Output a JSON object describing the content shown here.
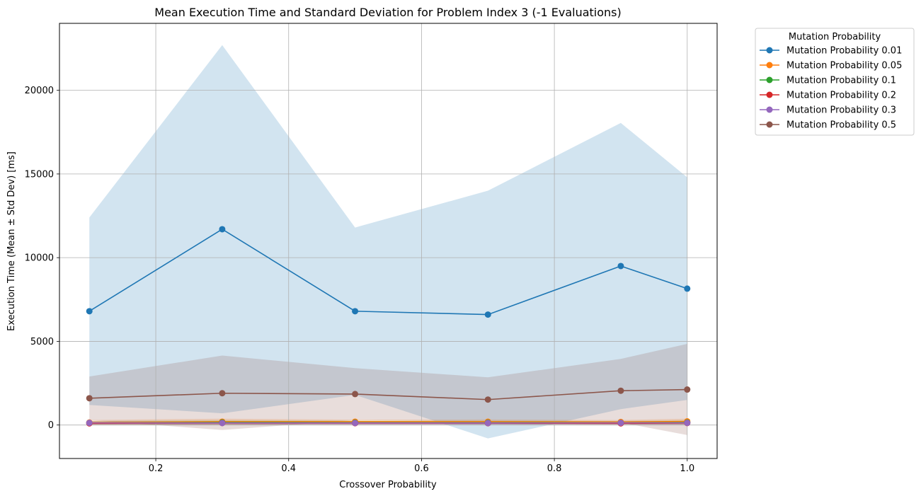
{
  "chart_data": {
    "type": "line",
    "title": "Mean Execution Time and Standard Deviation for Problem Index 3 (-1 Evaluations)",
    "xlabel": "Crossover Probability",
    "ylabel": "Execution Time (Mean ± Std Dev) [ms]",
    "xlim": [
      0.055,
      1.045
    ],
    "ylim": [
      -2000,
      24000
    ],
    "xticks": [
      0.2,
      0.4,
      0.6,
      0.8,
      1.0
    ],
    "xtick_labels": [
      "0.2",
      "0.4",
      "0.6",
      "0.8",
      "1.0"
    ],
    "yticks": [
      0,
      5000,
      10000,
      15000,
      20000
    ],
    "ytick_labels": [
      "0",
      "5000",
      "10000",
      "15000",
      "20000"
    ],
    "grid": true,
    "legend": {
      "title": "Mutation Probability",
      "placement": "outside-top-right"
    },
    "x": [
      0.1,
      0.3,
      0.5,
      0.7,
      0.9,
      1.0
    ],
    "series": [
      {
        "name": "Mutation Probability 0.01",
        "color": "#1f77b4",
        "values": [
          6800,
          11700,
          6800,
          6600,
          9500,
          8150
        ],
        "upper": [
          12400,
          22700,
          11800,
          14000,
          18050,
          14800
        ],
        "lower": [
          1200,
          700,
          1800,
          -800,
          950,
          1500
        ]
      },
      {
        "name": "Mutation Probability 0.05",
        "color": "#ff7f0e",
        "values": [
          150,
          200,
          200,
          200,
          180,
          220
        ],
        "upper": [
          300,
          380,
          320,
          330,
          300,
          380
        ],
        "lower": [
          0,
          20,
          80,
          70,
          60,
          60
        ]
      },
      {
        "name": "Mutation Probability 0.1",
        "color": "#2ca02c",
        "values": [
          120,
          150,
          140,
          140,
          130,
          150
        ],
        "upper": [
          240,
          280,
          260,
          250,
          240,
          270
        ],
        "lower": [
          0,
          20,
          20,
          30,
          20,
          30
        ]
      },
      {
        "name": "Mutation Probability 0.2",
        "color": "#d62728",
        "values": [
          100,
          120,
          110,
          110,
          100,
          120
        ],
        "upper": [
          200,
          230,
          210,
          200,
          190,
          220
        ],
        "lower": [
          0,
          10,
          10,
          20,
          10,
          20
        ]
      },
      {
        "name": "Mutation Probability 0.3",
        "color": "#9467bd",
        "values": [
          130,
          120,
          120,
          120,
          130,
          130
        ],
        "upper": [
          240,
          220,
          220,
          220,
          230,
          240
        ],
        "lower": [
          20,
          20,
          20,
          20,
          30,
          20
        ]
      },
      {
        "name": "Mutation Probability 0.5",
        "color": "#8c564b",
        "values": [
          1600,
          1900,
          1850,
          1520,
          2050,
          2120
        ],
        "upper": [
          2900,
          4150,
          3400,
          2850,
          3950,
          4850
        ],
        "lower": [
          300,
          -300,
          300,
          200,
          150,
          -600
        ]
      }
    ]
  }
}
